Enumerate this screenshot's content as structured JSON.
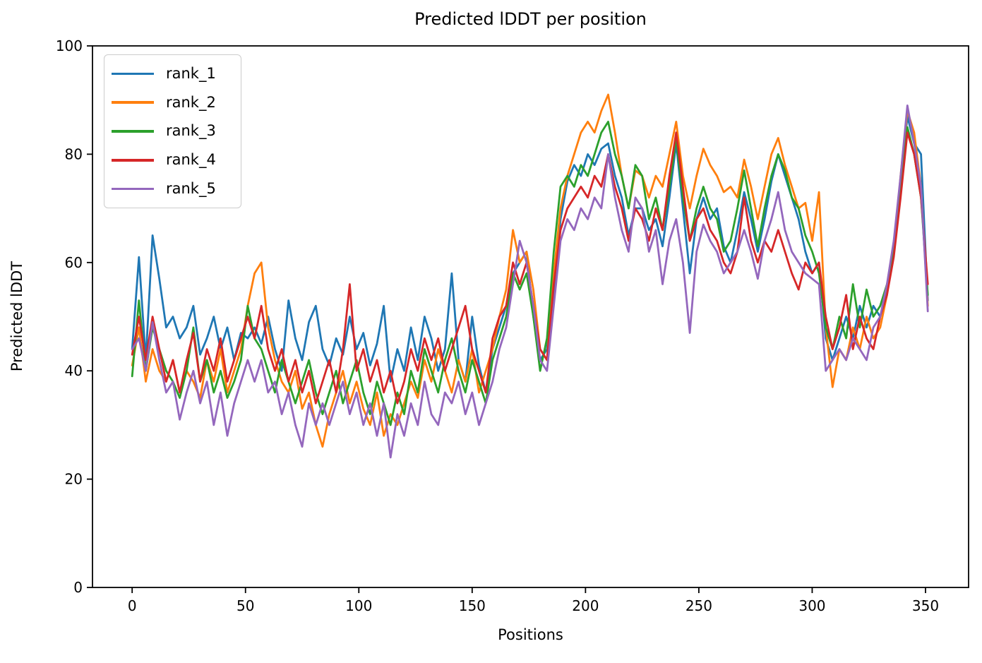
{
  "chart_data": {
    "type": "line",
    "title": "Predicted lDDT per position",
    "xlabel": "Positions",
    "ylabel": "Predicted lDDT",
    "xlim": [
      -17.5,
      369
    ],
    "ylim": [
      0,
      100
    ],
    "xticks": [
      0,
      50,
      100,
      150,
      200,
      250,
      300,
      350
    ],
    "yticks": [
      0,
      20,
      40,
      60,
      80,
      100
    ],
    "grid": false,
    "legend_position": "upper left",
    "x": [
      0,
      3,
      6,
      9,
      12,
      15,
      18,
      21,
      24,
      27,
      30,
      33,
      36,
      39,
      42,
      45,
      48,
      51,
      54,
      57,
      60,
      63,
      66,
      69,
      72,
      75,
      78,
      81,
      84,
      87,
      90,
      93,
      96,
      99,
      102,
      105,
      108,
      111,
      114,
      117,
      120,
      123,
      126,
      129,
      132,
      135,
      138,
      141,
      144,
      147,
      150,
      153,
      156,
      159,
      162,
      165,
      168,
      171,
      174,
      177,
      180,
      183,
      186,
      189,
      192,
      195,
      198,
      201,
      204,
      207,
      210,
      213,
      216,
      219,
      222,
      225,
      228,
      231,
      234,
      237,
      240,
      243,
      246,
      249,
      252,
      255,
      258,
      261,
      264,
      267,
      270,
      273,
      276,
      279,
      282,
      285,
      288,
      291,
      294,
      297,
      300,
      303,
      306,
      309,
      312,
      315,
      318,
      321,
      324,
      327,
      330,
      333,
      336,
      339,
      342,
      345,
      348,
      351
    ],
    "series": [
      {
        "name": "rank_1",
        "color": "#1f77b4",
        "values": [
          44,
          61,
          42,
          65,
          57,
          48,
          50,
          46,
          48,
          52,
          43,
          46,
          50,
          44,
          48,
          42,
          47,
          46,
          48,
          45,
          50,
          44,
          40,
          53,
          46,
          42,
          49,
          52,
          44,
          41,
          46,
          43,
          50,
          44,
          47,
          41,
          45,
          52,
          38,
          44,
          40,
          48,
          42,
          50,
          46,
          40,
          44,
          58,
          42,
          38,
          50,
          41,
          36,
          44,
          48,
          52,
          58,
          60,
          62,
          50,
          42,
          44,
          55,
          68,
          75,
          78,
          76,
          80,
          78,
          81,
          82,
          76,
          72,
          65,
          70,
          70,
          66,
          68,
          63,
          72,
          82,
          70,
          58,
          68,
          72,
          68,
          70,
          63,
          60,
          66,
          73,
          68,
          62,
          68,
          75,
          80,
          76,
          72,
          68,
          62,
          58,
          60,
          46,
          42,
          46,
          50,
          46,
          52,
          48,
          52,
          50,
          55,
          63,
          74,
          87,
          82,
          80,
          53
        ]
      },
      {
        "name": "rank_2",
        "color": "#ff7f0e",
        "values": [
          41,
          48,
          38,
          44,
          40,
          38,
          42,
          36,
          40,
          38,
          35,
          42,
          38,
          44,
          36,
          40,
          44,
          52,
          58,
          60,
          48,
          42,
          38,
          36,
          40,
          33,
          36,
          30,
          26,
          32,
          36,
          40,
          34,
          38,
          33,
          30,
          36,
          28,
          32,
          30,
          34,
          38,
          35,
          42,
          38,
          44,
          40,
          36,
          42,
          38,
          44,
          36,
          40,
          44,
          50,
          55,
          66,
          60,
          62,
          55,
          44,
          42,
          58,
          70,
          76,
          80,
          84,
          86,
          84,
          88,
          91,
          84,
          76,
          70,
          77,
          76,
          72,
          76,
          74,
          80,
          86,
          76,
          70,
          76,
          81,
          78,
          76,
          73,
          74,
          72,
          79,
          74,
          68,
          74,
          80,
          83,
          78,
          74,
          70,
          71,
          64,
          73,
          48,
          37,
          44,
          42,
          48,
          44,
          50,
          46,
          48,
          54,
          62,
          76,
          88,
          84,
          74,
          52
        ]
      },
      {
        "name": "rank_3",
        "color": "#2ca02c",
        "values": [
          39,
          53,
          40,
          48,
          44,
          40,
          38,
          35,
          40,
          48,
          38,
          42,
          36,
          40,
          35,
          38,
          42,
          52,
          46,
          44,
          40,
          36,
          42,
          38,
          34,
          38,
          42,
          36,
          32,
          36,
          40,
          34,
          38,
          42,
          36,
          32,
          38,
          34,
          30,
          36,
          32,
          40,
          36,
          44,
          40,
          36,
          42,
          46,
          40,
          36,
          42,
          38,
          34,
          42,
          46,
          50,
          58,
          55,
          58,
          50,
          40,
          46,
          62,
          74,
          76,
          74,
          78,
          76,
          80,
          84,
          86,
          80,
          76,
          70,
          78,
          76,
          68,
          72,
          66,
          74,
          83,
          72,
          64,
          70,
          74,
          70,
          68,
          62,
          64,
          70,
          77,
          70,
          63,
          70,
          76,
          80,
          77,
          72,
          70,
          65,
          62,
          58,
          48,
          44,
          50,
          46,
          56,
          48,
          55,
          50,
          52,
          56,
          62,
          74,
          85,
          80,
          72,
          54
        ]
      },
      {
        "name": "rank_4",
        "color": "#d62728",
        "values": [
          43,
          50,
          42,
          50,
          44,
          38,
          42,
          36,
          42,
          47,
          38,
          44,
          40,
          46,
          38,
          42,
          46,
          50,
          46,
          52,
          44,
          40,
          44,
          38,
          42,
          36,
          40,
          34,
          38,
          42,
          36,
          44,
          56,
          40,
          44,
          38,
          42,
          36,
          40,
          34,
          38,
          44,
          40,
          46,
          42,
          46,
          40,
          44,
          48,
          52,
          44,
          40,
          36,
          46,
          50,
          52,
          60,
          56,
          60,
          52,
          44,
          42,
          56,
          66,
          70,
          72,
          74,
          72,
          76,
          74,
          80,
          74,
          70,
          64,
          70,
          68,
          64,
          70,
          66,
          76,
          84,
          74,
          64,
          68,
          70,
          66,
          64,
          60,
          58,
          62,
          72,
          64,
          60,
          64,
          62,
          66,
          62,
          58,
          55,
          60,
          58,
          60,
          50,
          44,
          48,
          54,
          44,
          50,
          46,
          44,
          50,
          54,
          61,
          72,
          84,
          80,
          72,
          56
        ]
      },
      {
        "name": "rank_5",
        "color": "#9467bd",
        "values": [
          44,
          46,
          40,
          49,
          42,
          36,
          38,
          31,
          36,
          40,
          34,
          38,
          30,
          36,
          28,
          34,
          38,
          42,
          38,
          42,
          36,
          38,
          32,
          36,
          30,
          26,
          34,
          30,
          34,
          30,
          34,
          38,
          32,
          36,
          30,
          34,
          28,
          34,
          24,
          32,
          28,
          34,
          30,
          38,
          32,
          30,
          36,
          34,
          38,
          32,
          36,
          30,
          34,
          38,
          44,
          48,
          56,
          64,
          60,
          52,
          42,
          40,
          52,
          64,
          68,
          66,
          70,
          68,
          72,
          70,
          80,
          72,
          66,
          62,
          72,
          70,
          62,
          66,
          56,
          64,
          68,
          60,
          47,
          62,
          67,
          64,
          62,
          58,
          60,
          62,
          66,
          62,
          57,
          64,
          68,
          73,
          66,
          62,
          60,
          58,
          57,
          56,
          40,
          42,
          44,
          42,
          46,
          44,
          42,
          48,
          50,
          56,
          64,
          76,
          89,
          82,
          74,
          51
        ]
      }
    ]
  }
}
